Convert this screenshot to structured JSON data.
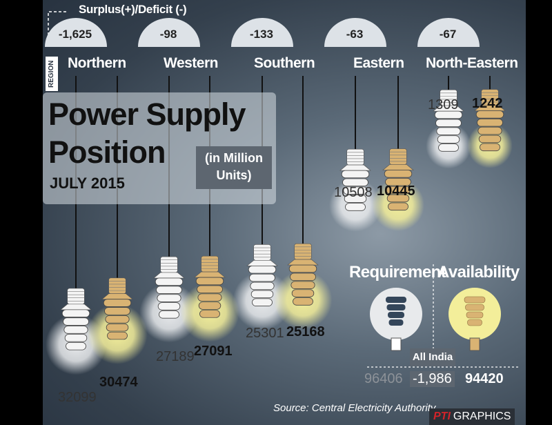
{
  "header": {
    "surplus_label": "Surplus(+)/Deficit (-)",
    "region_label": "REGION"
  },
  "title": {
    "line1": "Power Supply",
    "line2": "Position",
    "date": "JULY 2015",
    "units_line1": "(in Million",
    "units_line2": "Units)"
  },
  "legend": {
    "requirement": "Requirement",
    "availability": "Availability"
  },
  "colors": {
    "requirement": "#f4f4f4",
    "availability": "#d9b373",
    "glow_requirement": "#e8eaec",
    "glow_availability": "#f3ee9a",
    "background": "#4a5866"
  },
  "chart_data": {
    "type": "bar",
    "categories": [
      "Northern",
      "Western",
      "Southern",
      "Eastern",
      "North-Eastern"
    ],
    "series": [
      {
        "name": "Requirement",
        "values": [
          32099,
          27189,
          25301,
          10508,
          1309
        ]
      },
      {
        "name": "Availability",
        "values": [
          30474,
          27091,
          25168,
          10445,
          1242
        ]
      }
    ],
    "surplus_deficit": [
      "-1,625",
      "-98",
      "-133",
      "-63",
      "-67"
    ],
    "surplus_values": [
      -1625,
      -98,
      -133,
      -63,
      -67
    ]
  },
  "all_india": {
    "label": "All India",
    "requirement": "96406",
    "deficit": "-1,986",
    "availability": "94420"
  },
  "footer": {
    "source": "Source: Central Electricity Authority",
    "credit_brand": "PTI",
    "credit_text": "GRAPHICS"
  }
}
